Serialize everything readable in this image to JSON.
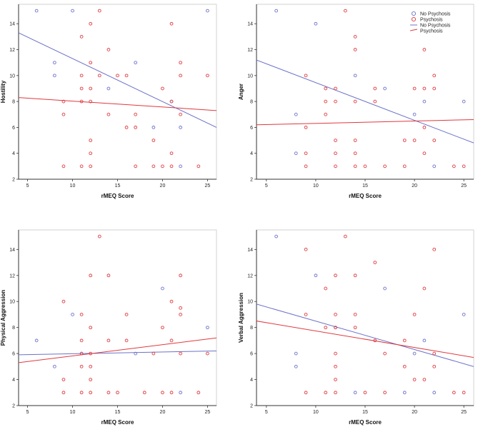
{
  "colors": {
    "no_psychosis": "#6b72c9",
    "psychosis": "#e0393e",
    "axis": "#333333",
    "frame": "#c8c8c8"
  },
  "legend": {
    "position": "top-right of Anger panel",
    "entries": [
      {
        "label": "No Psychosis",
        "kind": "marker",
        "group": "no_psychosis"
      },
      {
        "label": "Psychosis",
        "kind": "marker",
        "group": "psychosis"
      },
      {
        "label": "No Psychosis",
        "kind": "line",
        "group": "no_psychosis"
      },
      {
        "label": "Psychosis",
        "kind": "line",
        "group": "psychosis"
      }
    ]
  },
  "chart_data": [
    {
      "type": "scatter",
      "id": "hostility",
      "xlabel": "rMEQ Score",
      "ylabel": "Hostility",
      "xlim": [
        4,
        26
      ],
      "ylim": [
        2,
        15.5
      ],
      "xticks": [
        5,
        10,
        15,
        20,
        25
      ],
      "yticks": [
        2,
        4,
        6,
        8,
        10,
        12,
        14
      ],
      "series": [
        {
          "name": "No Psychosis",
          "group": "no_psychosis",
          "points": [
            [
              6,
              15
            ],
            [
              10,
              15
            ],
            [
              25,
              15
            ],
            [
              8,
              11
            ],
            [
              8,
              10
            ],
            [
              17,
              11
            ],
            [
              14,
              9
            ],
            [
              19,
              6
            ],
            [
              21,
              8
            ],
            [
              22,
              6
            ],
            [
              22,
              3
            ]
          ],
          "fit": [
            [
              4,
              13.3
            ],
            [
              26,
              6
            ]
          ]
        },
        {
          "name": "Psychosis",
          "group": "psychosis",
          "points": [
            [
              13,
              15
            ],
            [
              12,
              14
            ],
            [
              21,
              14
            ],
            [
              11,
              13
            ],
            [
              14,
              12
            ],
            [
              12,
              11
            ],
            [
              22,
              11
            ],
            [
              11,
              10
            ],
            [
              13,
              10
            ],
            [
              15,
              10
            ],
            [
              16,
              10
            ],
            [
              22,
              10
            ],
            [
              25,
              10
            ],
            [
              11,
              9
            ],
            [
              12,
              9
            ],
            [
              20,
              9
            ],
            [
              9,
              8
            ],
            [
              11,
              8
            ],
            [
              12,
              8
            ],
            [
              21,
              8
            ],
            [
              9,
              7
            ],
            [
              14,
              7
            ],
            [
              17,
              7
            ],
            [
              22,
              7
            ],
            [
              16,
              6
            ],
            [
              17,
              6
            ],
            [
              12,
              5
            ],
            [
              19,
              5
            ],
            [
              12,
              4
            ],
            [
              21,
              4
            ],
            [
              9,
              3
            ],
            [
              11,
              3
            ],
            [
              12,
              3
            ],
            [
              17,
              3
            ],
            [
              19,
              3
            ],
            [
              20,
              3
            ],
            [
              21,
              3
            ],
            [
              24,
              3
            ]
          ],
          "fit": [
            [
              4,
              8.3
            ],
            [
              26,
              7.3
            ]
          ]
        }
      ]
    },
    {
      "type": "scatter",
      "id": "anger",
      "xlabel": "rMEQ Score",
      "ylabel": "Anger",
      "xlim": [
        4,
        26
      ],
      "ylim": [
        2,
        15.5
      ],
      "xticks": [
        5,
        10,
        15,
        20,
        25
      ],
      "yticks": [
        2,
        4,
        6,
        8,
        10,
        12,
        14
      ],
      "series": [
        {
          "name": "No Psychosis",
          "group": "no_psychosis",
          "points": [
            [
              6,
              15
            ],
            [
              10,
              14
            ],
            [
              14,
              10
            ],
            [
              17,
              9
            ],
            [
              8,
              7
            ],
            [
              20,
              7
            ],
            [
              21,
              8
            ],
            [
              25,
              8
            ],
            [
              8,
              4
            ],
            [
              22,
              3
            ]
          ],
          "fit": [
            [
              4,
              11.2
            ],
            [
              26,
              4.8
            ]
          ]
        },
        {
          "name": "Psychosis",
          "group": "psychosis",
          "points": [
            [
              13,
              15
            ],
            [
              14,
              13
            ],
            [
              14,
              12
            ],
            [
              21,
              12
            ],
            [
              9,
              10
            ],
            [
              22,
              10
            ],
            [
              11,
              9
            ],
            [
              12,
              9
            ],
            [
              16,
              9
            ],
            [
              20,
              9
            ],
            [
              21,
              9
            ],
            [
              22,
              9
            ],
            [
              11,
              8
            ],
            [
              12,
              8
            ],
            [
              14,
              8
            ],
            [
              16,
              8
            ],
            [
              11,
              7
            ],
            [
              9,
              6
            ],
            [
              21,
              6
            ],
            [
              12,
              5
            ],
            [
              14,
              5
            ],
            [
              19,
              5
            ],
            [
              20,
              5
            ],
            [
              22,
              5
            ],
            [
              9,
              4
            ],
            [
              12,
              4
            ],
            [
              14,
              4
            ],
            [
              21,
              4
            ],
            [
              9,
              3
            ],
            [
              12,
              3
            ],
            [
              14,
              3
            ],
            [
              15,
              3
            ],
            [
              17,
              3
            ],
            [
              19,
              3
            ],
            [
              24,
              3
            ],
            [
              25,
              3
            ]
          ],
          "fit": [
            [
              4,
              6.2
            ],
            [
              26,
              6.6
            ]
          ]
        }
      ]
    },
    {
      "type": "scatter",
      "id": "physical-aggression",
      "xlabel": "rMEQ Score",
      "ylabel": "Physical Aggression",
      "xlim": [
        4,
        26
      ],
      "ylim": [
        2,
        15.5
      ],
      "xticks": [
        5,
        10,
        15,
        20,
        25
      ],
      "yticks": [
        2,
        4,
        6,
        8,
        10,
        12,
        14
      ],
      "series": [
        {
          "name": "No Psychosis",
          "group": "no_psychosis",
          "points": [
            [
              6,
              7
            ],
            [
              10,
              9
            ],
            [
              8,
              5
            ],
            [
              11,
              6
            ],
            [
              17,
              6
            ],
            [
              20,
              11
            ],
            [
              22,
              3
            ],
            [
              25,
              8
            ]
          ],
          "fit": [
            [
              4,
              5.9
            ],
            [
              26,
              6.2
            ]
          ]
        },
        {
          "name": "Psychosis",
          "group": "psychosis",
          "points": [
            [
              13,
              15
            ],
            [
              12,
              12
            ],
            [
              14,
              12
            ],
            [
              22,
              12
            ],
            [
              21,
              10
            ],
            [
              9,
              10
            ],
            [
              22,
              9.5
            ],
            [
              11,
              9
            ],
            [
              16,
              9
            ],
            [
              22,
              9
            ],
            [
              12,
              8
            ],
            [
              20,
              8
            ],
            [
              11,
              7
            ],
            [
              14,
              7
            ],
            [
              16,
              7
            ],
            [
              21,
              7
            ],
            [
              11,
              6
            ],
            [
              12,
              6
            ],
            [
              19,
              6
            ],
            [
              22,
              6
            ],
            [
              25,
              6
            ],
            [
              11,
              5
            ],
            [
              12,
              5
            ],
            [
              9,
              4
            ],
            [
              12,
              4
            ],
            [
              9,
              3
            ],
            [
              11,
              3
            ],
            [
              12,
              3
            ],
            [
              14,
              3
            ],
            [
              15,
              3
            ],
            [
              18,
              3
            ],
            [
              20,
              3
            ],
            [
              21,
              3
            ],
            [
              24,
              3
            ]
          ],
          "fit": [
            [
              4,
              5.3
            ],
            [
              26,
              7.2
            ]
          ]
        }
      ]
    },
    {
      "type": "scatter",
      "id": "verbal-aggression",
      "xlabel": "rMEQ Score",
      "ylabel": "Verbal Aggression",
      "xlim": [
        4,
        26
      ],
      "ylim": [
        2,
        15.5
      ],
      "xticks": [
        5,
        10,
        15,
        20,
        25
      ],
      "yticks": [
        2,
        4,
        6,
        8,
        10,
        12,
        14
      ],
      "series": [
        {
          "name": "No Psychosis",
          "group": "no_psychosis",
          "points": [
            [
              6,
              15
            ],
            [
              10,
              12
            ],
            [
              17,
              11
            ],
            [
              25,
              9
            ],
            [
              12,
              8
            ],
            [
              21,
              7
            ],
            [
              8,
              6
            ],
            [
              20,
              6
            ],
            [
              8,
              5
            ],
            [
              14,
              3
            ],
            [
              19,
              3
            ],
            [
              22,
              3
            ]
          ],
          "fit": [
            [
              4,
              9.8
            ],
            [
              26,
              5
            ]
          ]
        },
        {
          "name": "Psychosis",
          "group": "psychosis",
          "points": [
            [
              13,
              15
            ],
            [
              9,
              14
            ],
            [
              22,
              14
            ],
            [
              16,
              13
            ],
            [
              12,
              12
            ],
            [
              14,
              12
            ],
            [
              11,
              11
            ],
            [
              21,
              11
            ],
            [
              9,
              9
            ],
            [
              12,
              9
            ],
            [
              14,
              9
            ],
            [
              20,
              9
            ],
            [
              11,
              8
            ],
            [
              12,
              8
            ],
            [
              14,
              8
            ],
            [
              16,
              7
            ],
            [
              19,
              7
            ],
            [
              12,
              6
            ],
            [
              17,
              6
            ],
            [
              22,
              6
            ],
            [
              12,
              5
            ],
            [
              19,
              5
            ],
            [
              22,
              5
            ],
            [
              12,
              4
            ],
            [
              20,
              4
            ],
            [
              21,
              4
            ],
            [
              9,
              3
            ],
            [
              11,
              3
            ],
            [
              12,
              3
            ],
            [
              15,
              3
            ],
            [
              17,
              3
            ],
            [
              24,
              3
            ],
            [
              25,
              3
            ]
          ],
          "fit": [
            [
              4,
              8.5
            ],
            [
              26,
              5.7
            ]
          ]
        }
      ]
    }
  ]
}
